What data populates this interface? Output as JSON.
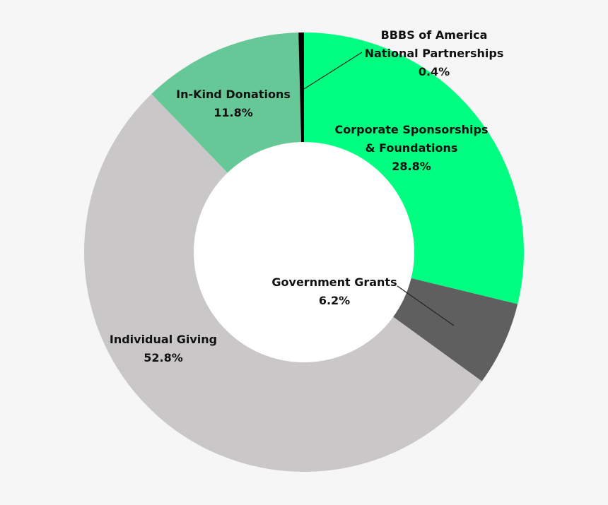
{
  "chart_data": {
    "type": "pie",
    "variant": "donut",
    "legend": "none",
    "slices": [
      {
        "label": [
          "Corporate Sponsorships",
          "& Foundations"
        ],
        "value": 28.8,
        "value_label": "28.8%",
        "color": "#00FF80"
      },
      {
        "label": [
          "Government Grants"
        ],
        "value": 6.2,
        "value_label": "6.2%",
        "color": "#5F5F5F"
      },
      {
        "label": [
          "Individual Giving"
        ],
        "value": 52.8,
        "value_label": "52.8%",
        "color": "#C9C7C7"
      },
      {
        "label": [
          "In-Kind Donations"
        ],
        "value": 11.8,
        "value_label": "11.8%",
        "color": "#66C896"
      },
      {
        "label": [
          "BBBS of America",
          "National Partnerships"
        ],
        "value": 0.4,
        "value_label": "0.4%",
        "color": "#000000"
      }
    ]
  }
}
